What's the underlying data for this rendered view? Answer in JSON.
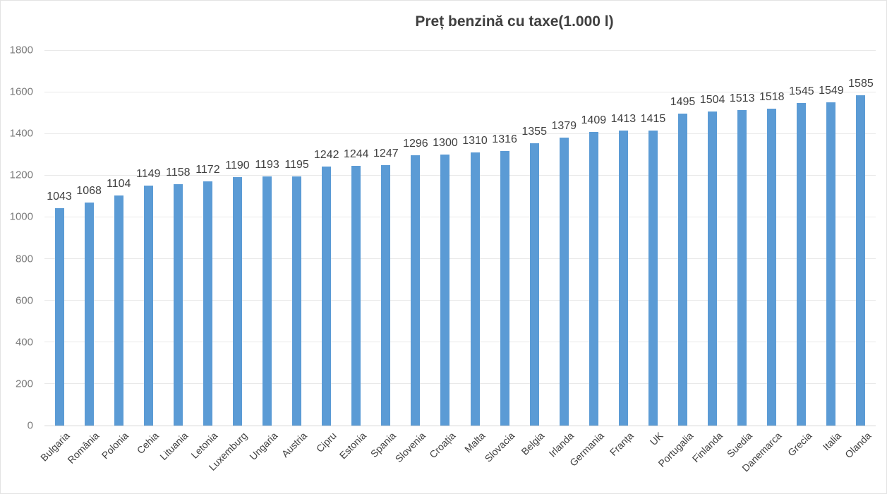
{
  "chart_data": {
    "type": "bar",
    "title": "Preț benzină cu taxe(1.000 l)",
    "categories": [
      "Bulgaria",
      "România",
      "Polonia",
      "Cehia",
      "Lituania",
      "Letonia",
      "Luxemburg",
      "Ungaria",
      "Austria",
      "Cipru",
      "Estonia",
      "Spania",
      "Slovenia",
      "Croația",
      "Malta",
      "Slovacia",
      "Belgia",
      "Irlanda",
      "Germania",
      "Franța",
      "UK",
      "Portugalia",
      "Finlanda",
      "Suedia",
      "Danemarca",
      "Grecia",
      "Italia",
      "Olanda"
    ],
    "values": [
      1043,
      1068,
      1104,
      1149,
      1158,
      1172,
      1190,
      1193,
      1195,
      1242,
      1244,
      1247,
      1296,
      1300,
      1310,
      1316,
      1355,
      1379,
      1409,
      1413,
      1415,
      1495,
      1504,
      1513,
      1518,
      1545,
      1549,
      1585
    ],
    "xlabel": "",
    "ylabel": "",
    "ylim": [
      0,
      1800
    ],
    "ytick_step": 200,
    "grid": "horizontal",
    "legend": "none",
    "data_labels": "above-bars",
    "bar_color": "#5B9BD5",
    "grid_color": "#e9e9e9",
    "axis_line_color": "#d6d6d6",
    "title_color": "#3f3f3f",
    "value_label_color": "#404040",
    "ytick_label_color": "#7a7a7a",
    "xtick_label_color": "#3f3f3f"
  }
}
